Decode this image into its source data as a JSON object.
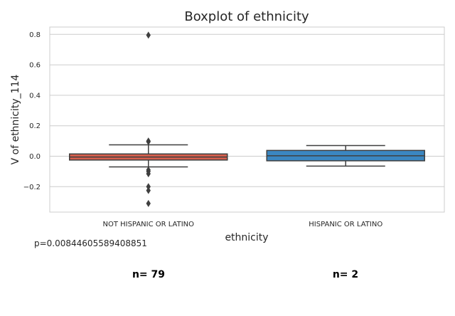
{
  "chart_data": {
    "type": "boxplot",
    "title": "Boxplot of ethnicity",
    "xlabel": "ethnicity",
    "ylabel": "V of ethnicity_114",
    "ylim": [
      -0.36,
      0.85
    ],
    "yticks": [
      0.8,
      0.6,
      0.4,
      0.2,
      0.0,
      -0.2
    ],
    "ytick_labels": [
      "0.8",
      "0.6",
      "0.4",
      "0.2",
      "0.0",
      "−0.2"
    ],
    "grid": true,
    "categories": [
      "NOT HISPANIC OR LATINO",
      "HISPANIC OR LATINO"
    ],
    "boxes": [
      {
        "category": "NOT HISPANIC OR LATINO",
        "color": "#d65f4d",
        "whisker_low": -0.07,
        "q1": -0.025,
        "median": -0.005,
        "q3": 0.015,
        "whisker_high": 0.075,
        "outliers": [
          0.795,
          0.1,
          0.095,
          -0.09,
          -0.1,
          -0.115,
          -0.2,
          -0.225,
          -0.31
        ]
      },
      {
        "category": "HISPANIC OR LATINO",
        "color": "#3b87c1",
        "whisker_low": -0.065,
        "q1": -0.03,
        "median": 0.003,
        "q3": 0.038,
        "whisker_high": 0.07,
        "outliers": []
      }
    ]
  },
  "annotations": {
    "p_value": "p=0.00844605589408851",
    "counts": [
      "n= 79",
      "n= 2"
    ]
  }
}
